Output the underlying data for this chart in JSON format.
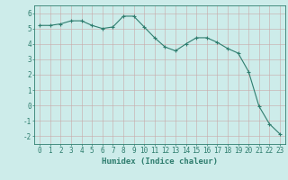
{
  "x": [
    0,
    1,
    2,
    3,
    4,
    5,
    6,
    7,
    8,
    9,
    10,
    11,
    12,
    13,
    14,
    15,
    16,
    17,
    18,
    19,
    20,
    21,
    22,
    23
  ],
  "y": [
    5.2,
    5.2,
    5.3,
    5.5,
    5.5,
    5.2,
    5.0,
    5.1,
    5.8,
    5.8,
    5.1,
    4.4,
    3.8,
    3.55,
    4.0,
    4.4,
    4.4,
    4.1,
    3.7,
    3.4,
    2.2,
    -0.05,
    -1.2,
    -1.85
  ],
  "xlabel": "Humidex (Indice chaleur)",
  "bg_color": "#cdecea",
  "line_color": "#2e7d6e",
  "marker": "+",
  "ylim": [
    -2.5,
    6.5
  ],
  "xlim": [
    -0.5,
    23.5
  ],
  "yticks": [
    -2,
    -1,
    0,
    1,
    2,
    3,
    4,
    5,
    6
  ],
  "xticks": [
    0,
    1,
    2,
    3,
    4,
    5,
    6,
    7,
    8,
    9,
    10,
    11,
    12,
    13,
    14,
    15,
    16,
    17,
    18,
    19,
    20,
    21,
    22,
    23
  ],
  "grid_color": "#c8a8a8",
  "tick_label_color": "#2e7d6e",
  "xlabel_fontsize": 6.5,
  "tick_fontsize": 5.5
}
